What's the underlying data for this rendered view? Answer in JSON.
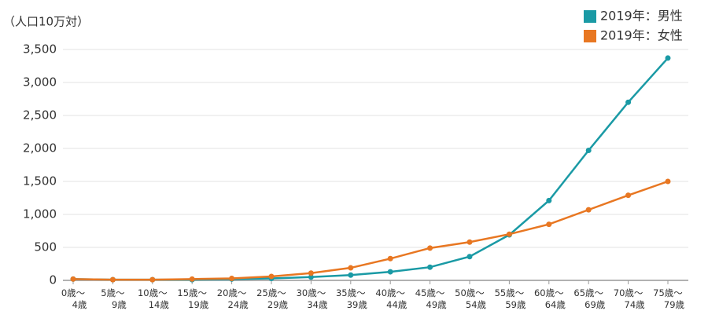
{
  "chart_data": {
    "type": "line",
    "y_axis_label": "（人口10万対）",
    "categories": [
      "0歳〜\n4歳",
      "5歳〜\n9歳",
      "10歳〜\n14歳",
      "15歳〜\n19歳",
      "20歳〜\n24歳",
      "25歳〜\n29歳",
      "30歳〜\n34歳",
      "35歳〜\n39歳",
      "40歳〜\n44歳",
      "45歳〜\n49歳",
      "50歳〜\n54歳",
      "55歳〜\n59歳",
      "60歳〜\n64歳",
      "65歳〜\n69歳",
      "70歳〜\n74歳",
      "75歳〜\n79歳"
    ],
    "series": [
      {
        "name": "2019年：男性",
        "color": "#1a9aa5",
        "values": [
          20,
          10,
          10,
          10,
          20,
          30,
          50,
          80,
          130,
          200,
          360,
          690,
          1210,
          1970,
          2700,
          3370
        ]
      },
      {
        "name": "2019年：女性",
        "color": "#e87722",
        "values": [
          20,
          10,
          10,
          20,
          30,
          60,
          110,
          190,
          330,
          490,
          580,
          700,
          850,
          1070,
          1290,
          1500
        ]
      }
    ],
    "ylim": [
      0,
      3500
    ],
    "yticks": [
      0,
      500,
      {
        "value": 1000,
        "label": "1,000"
      },
      {
        "value": 1500,
        "label": "1,500"
      },
      {
        "value": 2000,
        "label": "2,000"
      },
      {
        "value": 2500,
        "label": "2,500"
      },
      {
        "value": 3000,
        "label": "3,000"
      },
      {
        "value": 3500,
        "label": "3,500"
      }
    ],
    "grid": true,
    "legend_position": "top-right"
  }
}
